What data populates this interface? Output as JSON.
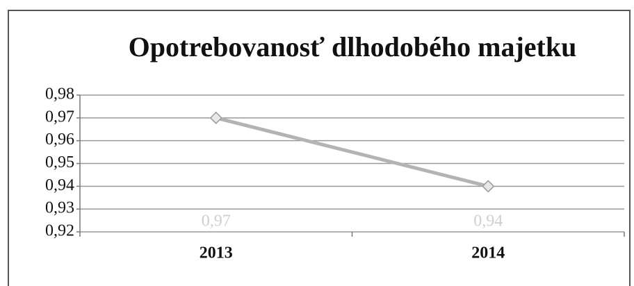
{
  "chart_data": {
    "type": "line",
    "title": "Opotrebovanosť dlhodobého majetku",
    "categories": [
      "2013",
      "2014"
    ],
    "series": [
      {
        "name": "Opotrebovanosť dlhodobého majetku",
        "color": "#b3b3b3",
        "values": [
          0.97,
          0.94
        ],
        "value_labels": [
          "0,97",
          "0,94"
        ]
      }
    ],
    "ylim": [
      0.92,
      0.98
    ],
    "yticks": [
      {
        "value": 0.92,
        "label": "0,92"
      },
      {
        "value": 0.93,
        "label": "0,93"
      },
      {
        "value": 0.94,
        "label": "0,94"
      },
      {
        "value": 0.95,
        "label": "0,95"
      },
      {
        "value": 0.96,
        "label": "0,96"
      },
      {
        "value": 0.97,
        "label": "0,97"
      },
      {
        "value": 0.98,
        "label": "0,98"
      }
    ],
    "grid": true
  }
}
